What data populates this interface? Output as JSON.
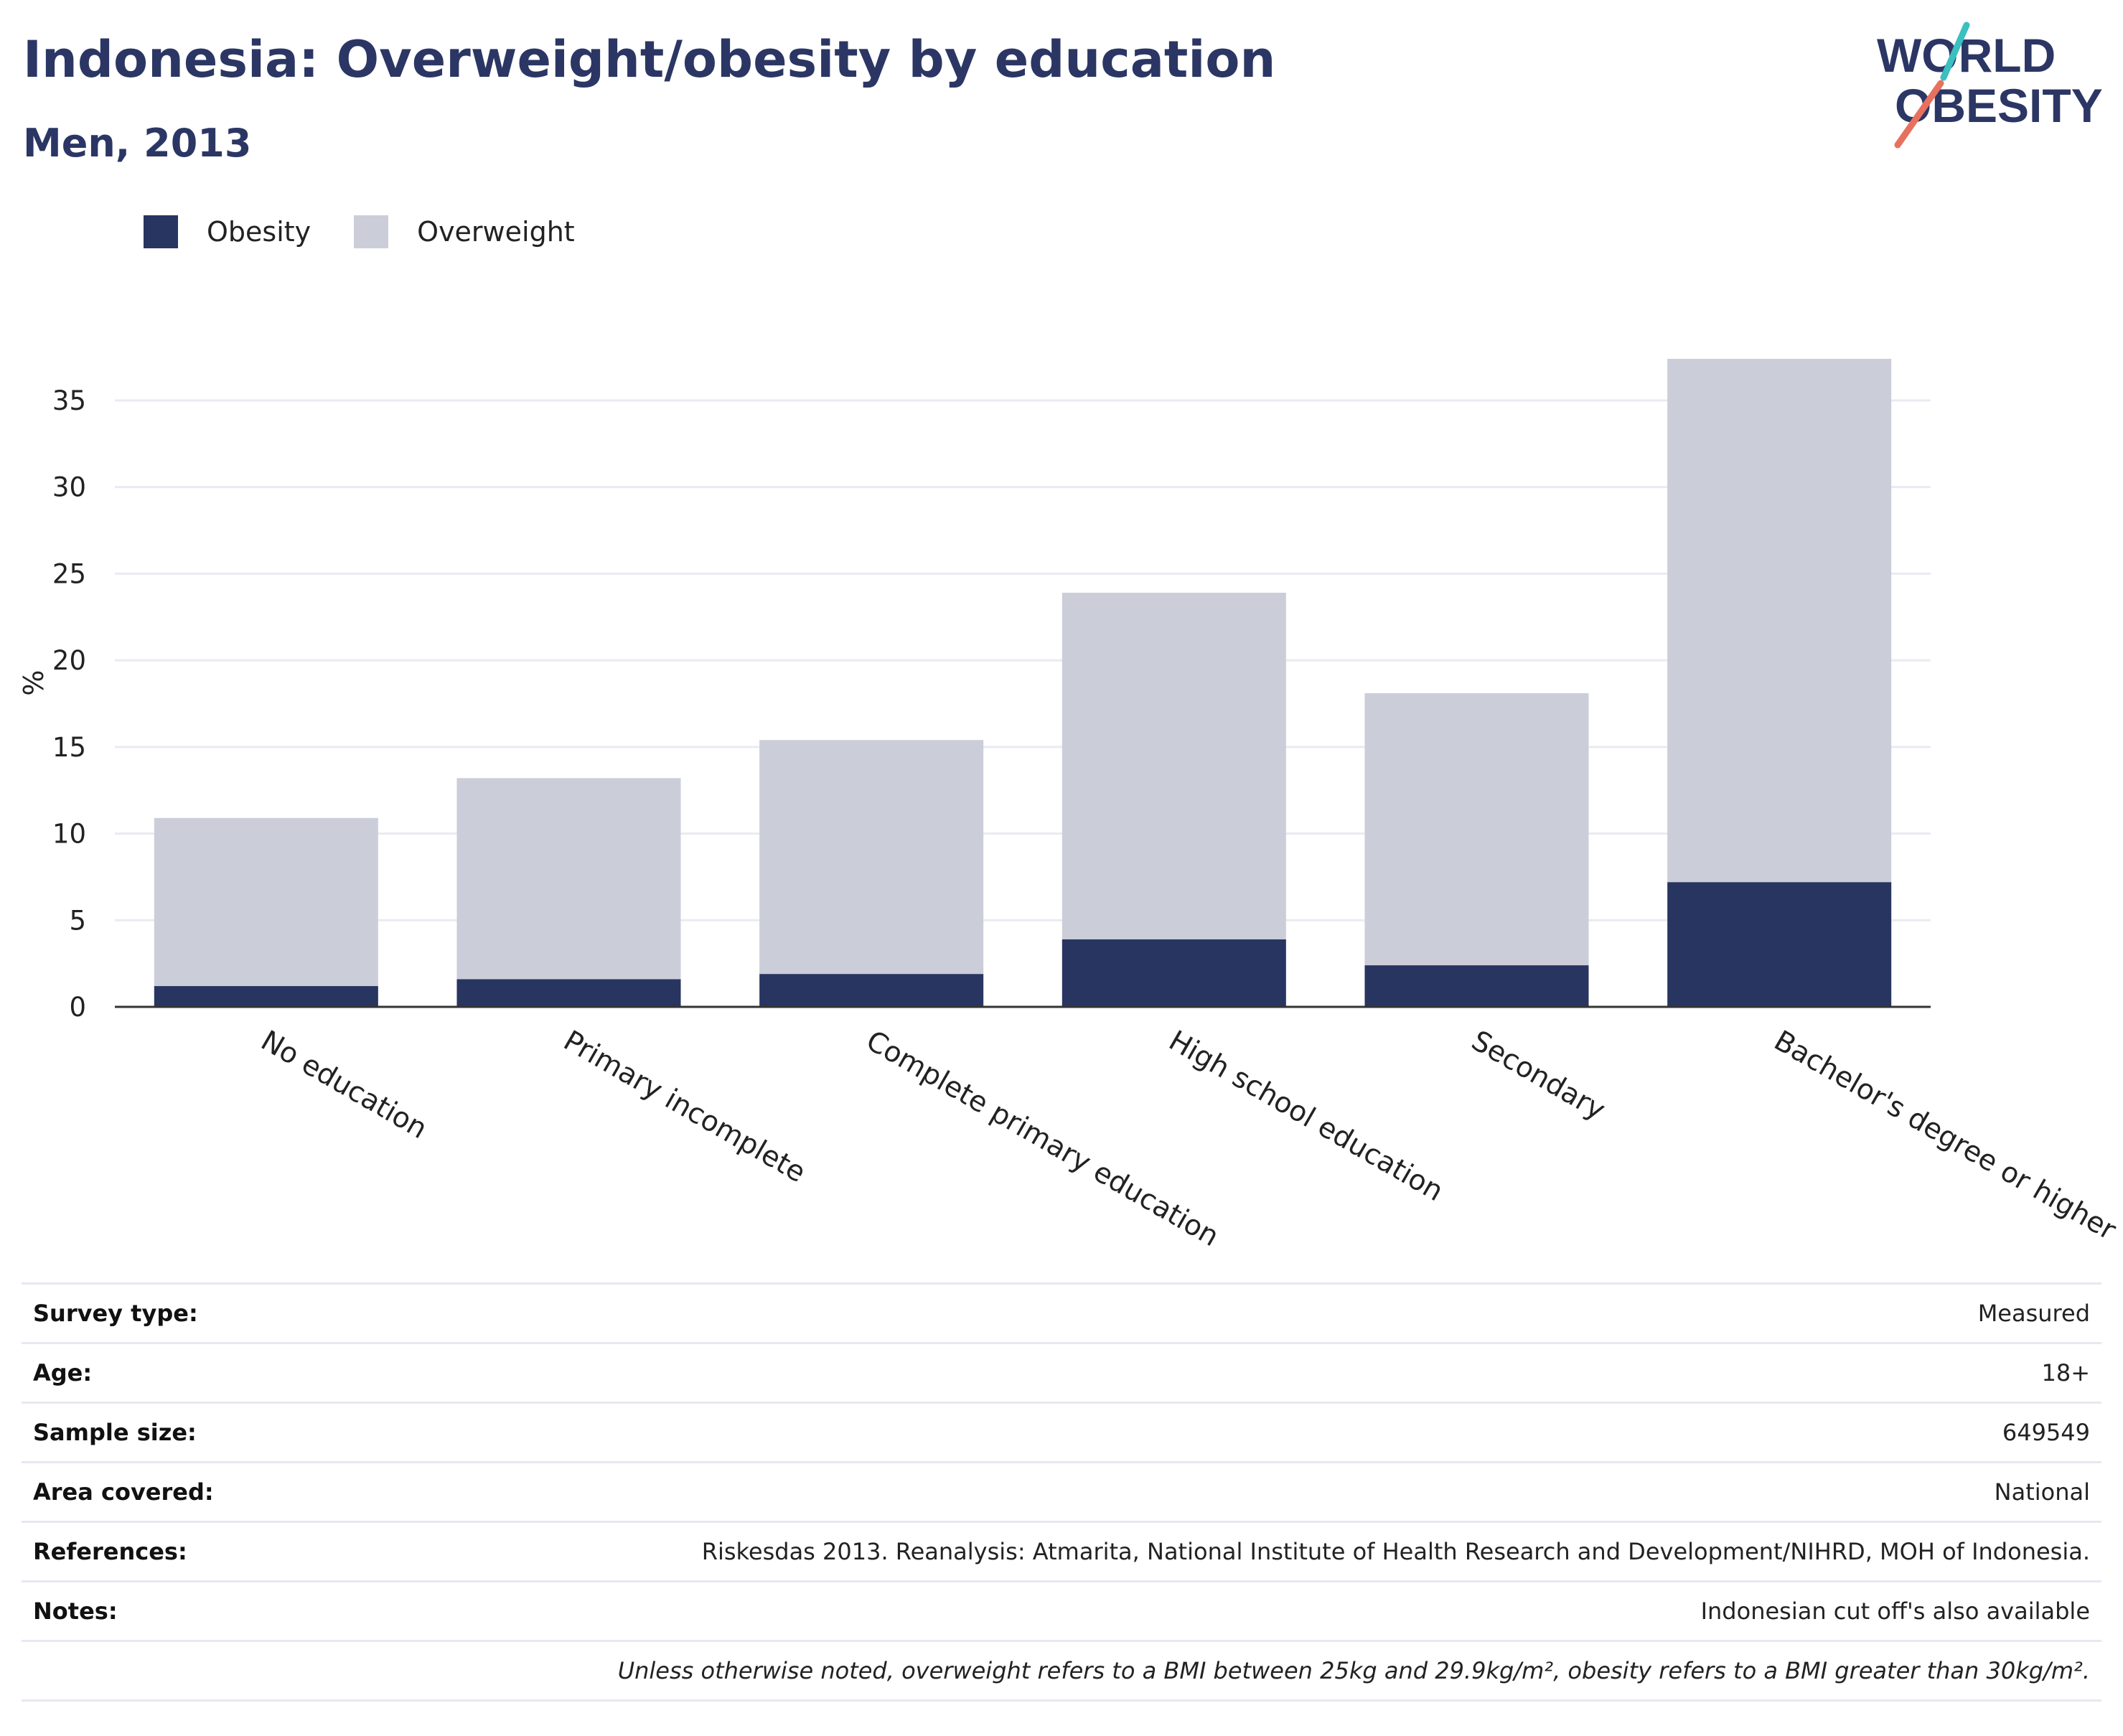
{
  "header": {
    "title": "Indonesia: Overweight/obesity by education",
    "subtitle": "Men, 2013",
    "logo_line1": "WORLD",
    "logo_line2": "OBESITY"
  },
  "legend": [
    {
      "label": "Obesity",
      "color": "#283560"
    },
    {
      "label": "Overweight",
      "color": "#cbcdd9"
    }
  ],
  "chart_data": {
    "type": "bar",
    "stacked": true,
    "categories": [
      "No education",
      "Primary incomplete",
      "Complete primary education",
      "High school education",
      "Secondary",
      "Bachelor's degree or higher"
    ],
    "series": [
      {
        "name": "Obesity",
        "color": "#283560",
        "values": [
          1.2,
          1.6,
          1.9,
          3.9,
          2.4,
          7.2
        ]
      },
      {
        "name": "Overweight",
        "color": "#cbcdd9",
        "values": [
          9.7,
          11.6,
          13.5,
          20.0,
          15.7,
          30.2
        ]
      }
    ],
    "ylabel": "%",
    "ylim": [
      0,
      37.4
    ],
    "yticks": [
      0,
      5,
      10,
      15,
      20,
      25,
      30,
      35
    ],
    "grid": true,
    "legend_position": "top-left"
  },
  "info": {
    "rows": [
      {
        "label": "Survey type:",
        "value": "Measured"
      },
      {
        "label": "Age:",
        "value": "18+"
      },
      {
        "label": "Sample size:",
        "value": "649549"
      },
      {
        "label": "Area covered:",
        "value": "National"
      },
      {
        "label": "References:",
        "value": "Riskesdas 2013. Reanalysis: Atmarita, National Institute of Health Research and Development/NIHRD, MOH of Indonesia."
      },
      {
        "label": "Notes:",
        "value": "Indonesian cut off's also available"
      }
    ],
    "footnote": "Unless otherwise noted, overweight refers to a BMI between 25kg and 29.9kg/m², obesity refers to a BMI greater than 30kg/m²."
  }
}
